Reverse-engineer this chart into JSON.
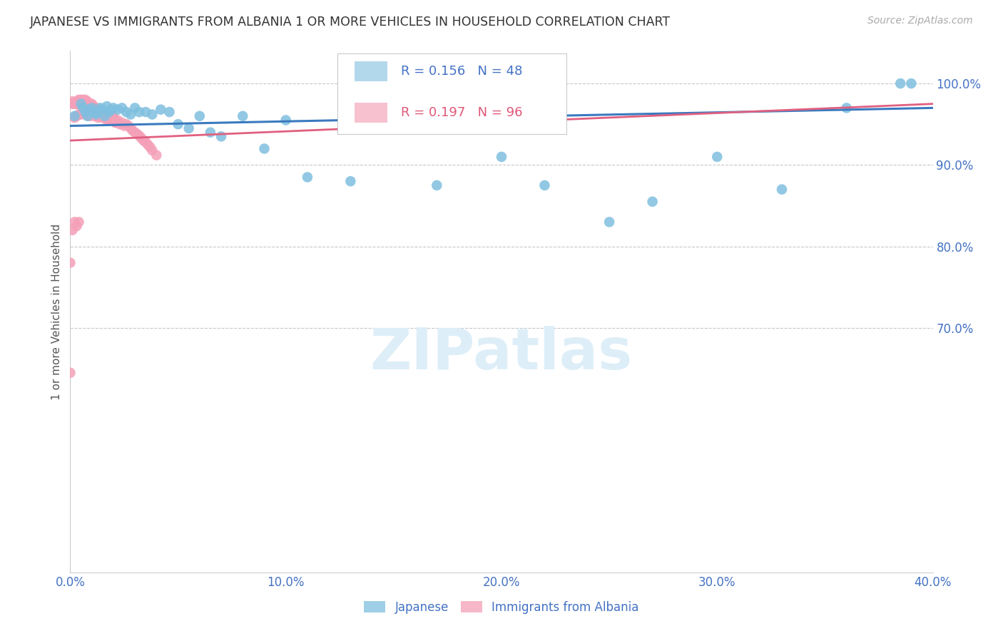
{
  "title": "JAPANESE VS IMMIGRANTS FROM ALBANIA 1 OR MORE VEHICLES IN HOUSEHOLD CORRELATION CHART",
  "source": "Source: ZipAtlas.com",
  "ylabel": "1 or more Vehicles in Household",
  "xlim": [
    0.0,
    0.4
  ],
  "ylim": [
    0.4,
    1.04
  ],
  "xtick_positions": [
    0.0,
    0.05,
    0.1,
    0.15,
    0.2,
    0.25,
    0.3,
    0.35,
    0.4
  ],
  "xtick_labels": [
    "0.0%",
    "",
    "10.0%",
    "",
    "20.0%",
    "",
    "30.0%",
    "",
    "40.0%"
  ],
  "ytick_positions": [
    0.4,
    0.5,
    0.6,
    0.7,
    0.8,
    0.9,
    1.0
  ],
  "ytick_labels": [
    "",
    "",
    "",
    "70.0%",
    "80.0%",
    "90.0%",
    "100.0%"
  ],
  "legend_blue_label": "Japanese",
  "legend_pink_label": "Immigrants from Albania",
  "R_blue": 0.156,
  "N_blue": 48,
  "R_pink": 0.197,
  "N_pink": 96,
  "blue_color": "#7fbfdf",
  "pink_color": "#f4a0b8",
  "blue_line_color": "#3a7abf",
  "pink_line_color": "#e06080",
  "axis_color": "#4472c4",
  "watermark_color": "#ddeef8",
  "grid_color": "#c8c8c8",
  "blue_x": [
    0.002,
    0.005,
    0.006,
    0.007,
    0.008,
    0.009,
    0.01,
    0.011,
    0.012,
    0.013,
    0.014,
    0.015,
    0.016,
    0.017,
    0.018,
    0.019,
    0.02,
    0.022,
    0.024,
    0.026,
    0.028,
    0.03,
    0.032,
    0.035,
    0.038,
    0.042,
    0.046,
    0.05,
    0.055,
    0.06,
    0.065,
    0.07,
    0.08,
    0.09,
    0.1,
    0.11,
    0.13,
    0.15,
    0.17,
    0.2,
    0.22,
    0.25,
    0.27,
    0.3,
    0.33,
    0.36,
    0.385,
    0.39
  ],
  "blue_y": [
    0.96,
    0.975,
    0.97,
    0.965,
    0.96,
    0.968,
    0.97,
    0.965,
    0.962,
    0.965,
    0.97,
    0.968,
    0.96,
    0.972,
    0.965,
    0.968,
    0.97,
    0.968,
    0.97,
    0.965,
    0.962,
    0.97,
    0.965,
    0.965,
    0.962,
    0.968,
    0.965,
    0.95,
    0.945,
    0.96,
    0.94,
    0.935,
    0.96,
    0.92,
    0.955,
    0.885,
    0.88,
    0.965,
    0.875,
    0.91,
    0.875,
    0.83,
    0.855,
    0.91,
    0.87,
    0.97,
    1.0,
    1.0
  ],
  "pink_x": [
    0.001,
    0.001,
    0.002,
    0.002,
    0.003,
    0.003,
    0.003,
    0.004,
    0.004,
    0.004,
    0.005,
    0.005,
    0.005,
    0.005,
    0.006,
    0.006,
    0.006,
    0.006,
    0.007,
    0.007,
    0.007,
    0.007,
    0.008,
    0.008,
    0.008,
    0.009,
    0.009,
    0.009,
    0.01,
    0.01,
    0.01,
    0.011,
    0.011,
    0.011,
    0.012,
    0.012,
    0.013,
    0.013,
    0.014,
    0.014,
    0.015,
    0.015,
    0.016,
    0.016,
    0.017,
    0.017,
    0.018,
    0.018,
    0.019,
    0.02,
    0.02,
    0.021,
    0.022,
    0.023,
    0.024,
    0.025,
    0.026,
    0.027,
    0.028,
    0.029,
    0.03,
    0.031,
    0.032,
    0.033,
    0.034,
    0.035,
    0.036,
    0.037,
    0.038,
    0.04,
    0.002,
    0.003,
    0.004,
    0.005,
    0.006,
    0.007,
    0.008,
    0.009,
    0.01,
    0.011,
    0.012,
    0.013,
    0.014,
    0.015,
    0.016,
    0.017,
    0.018,
    0.019,
    0.02,
    0.021,
    0.0,
    0.0,
    0.001,
    0.002,
    0.003,
    0.004
  ],
  "pink_y": [
    0.975,
    0.978,
    0.975,
    0.975,
    0.975,
    0.978,
    0.978,
    0.975,
    0.978,
    0.98,
    0.972,
    0.975,
    0.978,
    0.98,
    0.972,
    0.975,
    0.978,
    0.98,
    0.972,
    0.975,
    0.978,
    0.98,
    0.972,
    0.975,
    0.978,
    0.97,
    0.972,
    0.975,
    0.968,
    0.972,
    0.975,
    0.968,
    0.97,
    0.972,
    0.965,
    0.968,
    0.965,
    0.968,
    0.962,
    0.965,
    0.96,
    0.962,
    0.958,
    0.962,
    0.958,
    0.96,
    0.955,
    0.96,
    0.958,
    0.955,
    0.958,
    0.952,
    0.955,
    0.95,
    0.952,
    0.948,
    0.95,
    0.948,
    0.945,
    0.942,
    0.94,
    0.938,
    0.936,
    0.933,
    0.93,
    0.928,
    0.925,
    0.922,
    0.918,
    0.912,
    0.958,
    0.96,
    0.962,
    0.962,
    0.965,
    0.962,
    0.965,
    0.96,
    0.962,
    0.96,
    0.96,
    0.958,
    0.962,
    0.958,
    0.96,
    0.955,
    0.96,
    0.955,
    0.96,
    0.952,
    0.78,
    0.645,
    0.82,
    0.83,
    0.825,
    0.83
  ]
}
